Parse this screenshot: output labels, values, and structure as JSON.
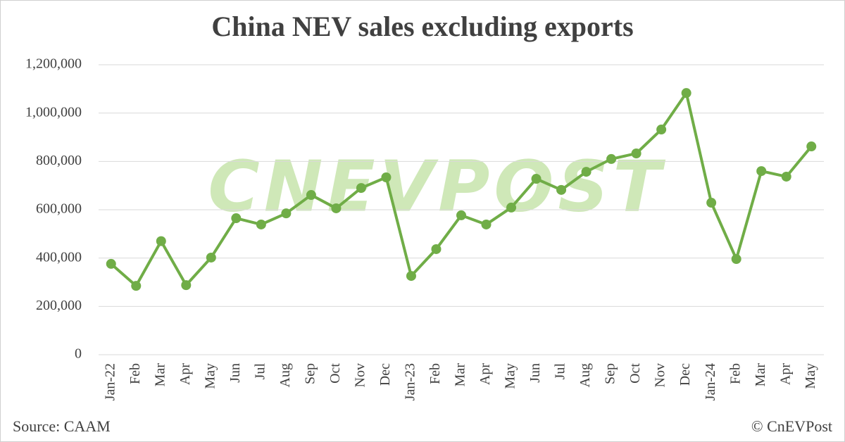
{
  "chart_data": {
    "type": "line",
    "title": "China NEV sales excluding exports",
    "watermark": "CNEVPOST",
    "source": "Source: CAAM",
    "credit": "© CnEVPost",
    "categories": [
      "Jan-22",
      "Feb",
      "Mar",
      "Apr",
      "May",
      "Jun",
      "Jul",
      "Aug",
      "Sep",
      "Oct",
      "Nov",
      "Dec",
      "Jan-23",
      "Feb",
      "Mar",
      "Apr",
      "May",
      "Jun",
      "Jul",
      "Aug",
      "Sep",
      "Oct",
      "Nov",
      "Dec",
      "Jan-24",
      "Feb",
      "Mar",
      "Apr",
      "May"
    ],
    "series": [
      {
        "name": "NEV sales excluding exports",
        "color": "#70ad47",
        "values": [
          376000,
          285000,
          470000,
          288000,
          402000,
          565000,
          539000,
          585000,
          661000,
          606000,
          690000,
          734000,
          326000,
          437000,
          577000,
          539000,
          609000,
          728000,
          682000,
          757000,
          810000,
          833000,
          932000,
          1083000,
          629000,
          396000,
          760000,
          737000,
          862000
        ]
      }
    ],
    "ylim": [
      0,
      1200000
    ],
    "yticks": [
      0,
      {
        "value": 200000,
        "label": "200,000"
      },
      {
        "value": 400000,
        "label": "400,000"
      },
      {
        "value": 600000,
        "label": "600,000"
      },
      {
        "value": 800000,
        "label": "800,000"
      },
      {
        "value": 1000000,
        "label": "1,000,000"
      },
      {
        "value": 1200000,
        "label": "1,200,000"
      }
    ],
    "grid": true
  }
}
